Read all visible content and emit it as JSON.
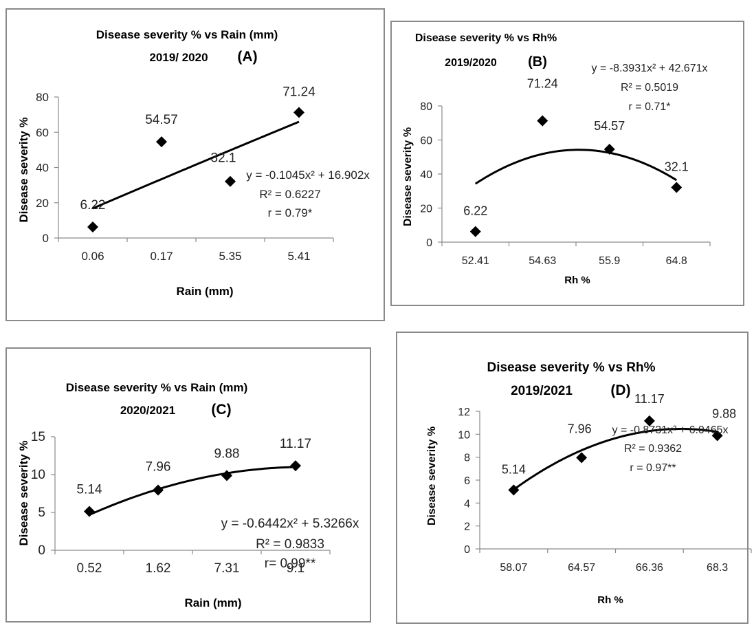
{
  "charts": [
    {
      "id": "A",
      "title_line1": "Disease severity % vs Rain (mm)",
      "title_line2": "2019/ 2020",
      "panel_letter": "(A)",
      "equation": "y = -0.1045x² + 16.902x",
      "r_squared": "R² = 0.6227",
      "r": "r = 0.79*",
      "chart_data": {
        "type": "scatter",
        "xlabel": "Rain (mm)",
        "ylabel": "Disease severity %",
        "categories": [
          "0.06",
          "0.17",
          "5.35",
          "5.41"
        ],
        "values": [
          6.22,
          54.57,
          32.1,
          71.24
        ],
        "point_labels": [
          "6.22",
          "54.57",
          "32.1",
          "71.24"
        ],
        "yticks": [
          "0",
          "20",
          "40",
          "60",
          "80"
        ],
        "ylim": [
          0,
          80
        ],
        "trendline": {
          "type": "polynomial",
          "a": -0.1045,
          "b": 16.902
        }
      }
    },
    {
      "id": "B",
      "title_line1": "Disease severity % vs Rh%",
      "title_line2": "2019/2020",
      "panel_letter": "(B)",
      "equation": "y = -8.3931x² + 42.671x",
      "r_squared": "R² = 0.5019",
      "r": "r = 0.71*",
      "chart_data": {
        "type": "scatter",
        "xlabel": "Rh %",
        "ylabel": "Disease severity %",
        "categories": [
          "52.41",
          "54.63",
          "55.9",
          "64.8"
        ],
        "values": [
          6.22,
          71.24,
          54.57,
          32.1
        ],
        "point_labels": [
          "6.22",
          "71.24",
          "54.57",
          "32.1"
        ],
        "yticks": [
          "0",
          "20",
          "40",
          "60",
          "80"
        ],
        "ylim": [
          0,
          80
        ],
        "trendline": {
          "type": "polynomial",
          "a": -8.3931,
          "b": 42.671
        }
      }
    },
    {
      "id": "C",
      "title_line1": "Disease severity % vs Rain (mm)",
      "title_line2": "2020/2021",
      "panel_letter": "(C)",
      "equation": "y = -0.6442x² + 5.3266x",
      "r_squared": "R² = 0.9833",
      "r": "r= 0.99**",
      "chart_data": {
        "type": "scatter",
        "xlabel": "Rain (mm)",
        "ylabel": "Disease severity %",
        "categories": [
          "0.52",
          "1.62",
          "7.31",
          "9.1"
        ],
        "values": [
          5.14,
          7.96,
          9.88,
          11.17
        ],
        "point_labels": [
          "5.14",
          "7.96",
          "9.88",
          "11.17"
        ],
        "yticks": [
          "0",
          "5",
          "10",
          "15"
        ],
        "ylim": [
          0,
          15
        ],
        "trendline": {
          "type": "polynomial",
          "a": -0.6442,
          "b": 5.3266
        }
      }
    },
    {
      "id": "D",
      "title_line1": "Disease severity % vs Rh%",
      "title_line2": "2019/2021",
      "panel_letter": "(D)",
      "equation": "y = -0.8731x² + 6.0465x",
      "r_squared": "R² = 0.9362",
      "r": "r = 0.97**",
      "chart_data": {
        "type": "scatter",
        "xlabel": "Rh %",
        "ylabel": "Disease severity %",
        "categories": [
          "58.07",
          "64.57",
          "66.36",
          "68.3"
        ],
        "values": [
          5.14,
          7.96,
          11.17,
          9.88
        ],
        "point_labels": [
          "5.14",
          "7.96",
          "11.17",
          "9.88"
        ],
        "yticks": [
          "0",
          "2",
          "4",
          "6",
          "8",
          "10",
          "12"
        ],
        "ylim": [
          0,
          12
        ],
        "trendline": {
          "type": "polynomial",
          "a": -0.8731,
          "b": 6.0465
        }
      }
    }
  ]
}
